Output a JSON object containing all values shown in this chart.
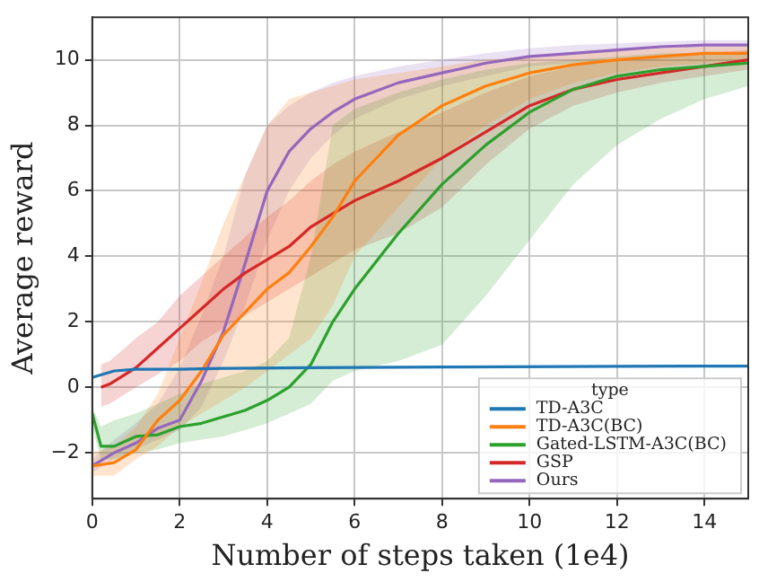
{
  "chart_data": {
    "type": "line",
    "xlabel": "Number of steps taken (1e4)",
    "ylabel": "Average reward",
    "legend_title": "type",
    "legend": "bottom right",
    "grid": true,
    "xlim": [
      0,
      15
    ],
    "xticks": [
      0,
      2,
      4,
      6,
      8,
      10,
      12,
      14
    ],
    "ylim": [
      -3.4,
      11.3
    ],
    "yticks": [
      -2,
      0,
      2,
      4,
      6,
      8,
      10
    ],
    "series": [
      {
        "name": "TD-A3C",
        "color": "#1f77b4",
        "x": [
          0,
          0.5,
          1,
          2,
          3,
          5,
          8,
          12,
          15
        ],
        "values": [
          0.3,
          0.5,
          0.55,
          0.55,
          0.58,
          0.6,
          0.62,
          0.64,
          0.65
        ]
      },
      {
        "name": "TD-A3C(BC)",
        "color": "#ff7f0e",
        "x": [
          0,
          0.5,
          1,
          1.5,
          2,
          2.5,
          3,
          3.5,
          4,
          4.5,
          5,
          5.5,
          6,
          7,
          8,
          9,
          10,
          11,
          12,
          13,
          14,
          15
        ],
        "values": [
          -2.4,
          -2.3,
          -1.9,
          -1.0,
          -0.4,
          0.5,
          1.6,
          2.3,
          3,
          3.5,
          4.3,
          5.2,
          6.3,
          7.7,
          8.6,
          9.2,
          9.6,
          9.85,
          10,
          10.1,
          10.2,
          10.2
        ],
        "lower": [
          -2.7,
          -2.7,
          -2.2,
          -1.8,
          -1.2,
          -0.8,
          -0.4,
          0,
          0.5,
          1,
          1.5,
          2.5,
          4,
          5.5,
          7,
          8,
          8.8,
          9.3,
          9.6,
          9.8,
          9.9,
          10
        ],
        "upper": [
          -2,
          -1.8,
          -1.2,
          -0.2,
          1.5,
          3.2,
          5,
          6.5,
          8,
          8.8,
          9,
          9.2,
          9.4,
          9.6,
          9.8,
          10,
          10.1,
          10.2,
          10.3,
          10.35,
          10.4,
          10.4
        ]
      },
      {
        "name": "Gated-LSTM-A3C(BC)",
        "color": "#2ca02c",
        "x": [
          0,
          0.2,
          0.5,
          1,
          1.5,
          2,
          2.5,
          3,
          3.5,
          4,
          4.5,
          5,
          5.5,
          6,
          7,
          8,
          9,
          10,
          11,
          12,
          13,
          14,
          15
        ],
        "values": [
          -0.8,
          -1.8,
          -1.8,
          -1.5,
          -1.45,
          -1.2,
          -1.1,
          -0.9,
          -0.7,
          -0.4,
          0,
          0.7,
          2,
          3,
          4.7,
          6.2,
          7.4,
          8.4,
          9.1,
          9.5,
          9.7,
          9.8,
          9.9
        ],
        "lower": [
          -1.2,
          -2.2,
          -2.2,
          -2,
          -1.9,
          -1.7,
          -1.6,
          -1.5,
          -1.3,
          -1.1,
          -0.8,
          -0.5,
          0.2,
          0.5,
          0.8,
          1.3,
          2.8,
          4.5,
          6.2,
          7.4,
          8.2,
          8.8,
          9.2
        ],
        "upper": [
          -0.6,
          -1.2,
          -1,
          -0.8,
          -0.5,
          -0.2,
          0.1,
          0.3,
          0.5,
          0.8,
          1.5,
          4,
          8,
          8.5,
          9,
          9.4,
          9.7,
          9.9,
          10,
          10.1,
          10.2,
          10.2,
          10.2
        ]
      },
      {
        "name": "GSP",
        "color": "#d62728",
        "x": [
          0.2,
          0.4,
          1,
          1.5,
          2,
          2.5,
          3,
          3.5,
          4,
          4.5,
          5,
          5.5,
          6,
          7,
          8,
          9,
          10,
          11,
          12,
          13,
          14,
          15
        ],
        "values": [
          0,
          0.1,
          0.6,
          1.2,
          1.8,
          2.4,
          3,
          3.5,
          3.9,
          4.3,
          4.9,
          5.3,
          5.7,
          6.3,
          7,
          7.8,
          8.6,
          9.1,
          9.4,
          9.6,
          9.8,
          10
        ],
        "lower": [
          -0.6,
          -0.5,
          0,
          0.4,
          0.8,
          1.4,
          1.8,
          2.2,
          2.6,
          3,
          3.4,
          3.8,
          4.2,
          4.7,
          5.5,
          6.8,
          7.9,
          8.6,
          9,
          9.3,
          9.5,
          9.7
        ],
        "upper": [
          0.7,
          0.8,
          1.5,
          2,
          2.8,
          3.4,
          4,
          4.6,
          5.2,
          5.7,
          6.3,
          6.8,
          7.2,
          7.8,
          8.4,
          9,
          9.5,
          9.8,
          10,
          10.1,
          10.2,
          10.3
        ]
      },
      {
        "name": "Ours",
        "color": "#9467bd",
        "x": [
          0,
          0.5,
          1,
          1.5,
          2,
          2.5,
          3,
          3.5,
          4,
          4.5,
          5,
          5.5,
          6,
          7,
          8,
          9,
          10,
          11,
          12,
          13,
          14,
          15
        ],
        "values": [
          -2.4,
          -2,
          -1.7,
          -1.25,
          -1.0,
          0.2,
          1.7,
          3.8,
          6,
          7.2,
          7.9,
          8.4,
          8.8,
          9.3,
          9.6,
          9.9,
          10.1,
          10.2,
          10.3,
          10.4,
          10.45,
          10.45
        ],
        "lower": [
          -2.6,
          -2.2,
          -1.9,
          -1.6,
          -1.3,
          -0.6,
          0.8,
          2.5,
          4.5,
          6,
          7,
          7.7,
          8.2,
          8.8,
          9.2,
          9.5,
          9.8,
          9.9,
          10,
          10.1,
          10.2,
          10.2
        ],
        "upper": [
          -2.2,
          -1.6,
          -1.1,
          -0.5,
          0.6,
          2.2,
          4,
          6.5,
          8,
          8.6,
          9,
          9.3,
          9.5,
          9.8,
          10,
          10.2,
          10.35,
          10.45,
          10.5,
          10.55,
          10.6,
          10.6
        ]
      }
    ]
  }
}
